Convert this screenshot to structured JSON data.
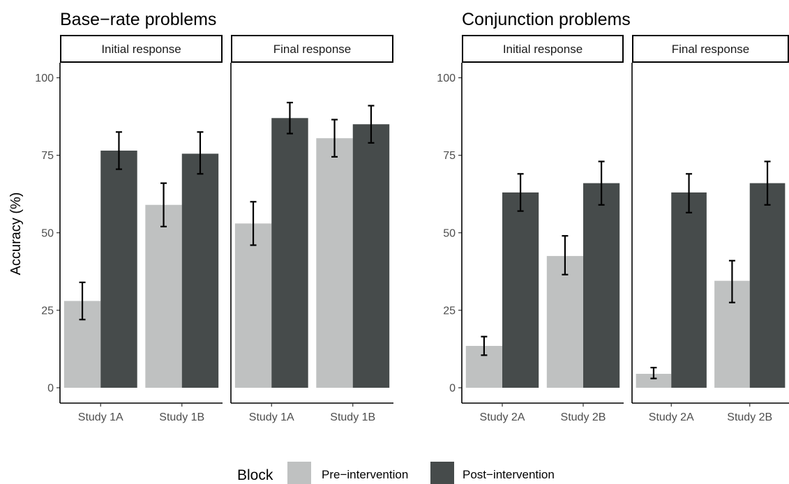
{
  "chart_data": {
    "type": "bar",
    "ylabel": "Accuracy (%)",
    "yticks": [
      0,
      25,
      50,
      75,
      100
    ],
    "ylim": [
      0,
      100
    ],
    "grid": false,
    "legend": {
      "title": "Block",
      "placement": "bottom",
      "entries": [
        {
          "name": "Pre−intervention",
          "color": "#bfc1c1"
        },
        {
          "name": "Post−intervention",
          "color": "#464b4b"
        }
      ]
    },
    "panels": [
      {
        "title": "Base−rate problems",
        "facets": [
          {
            "label": "Initial response",
            "categories": [
              "Study 1A",
              "Study 1B"
            ],
            "series": [
              {
                "name": "Pre−intervention",
                "values": [
                  28,
                  59
                ],
                "err_low": [
                  22,
                  52
                ],
                "err_high": [
                  34,
                  66
                ]
              },
              {
                "name": "Post−intervention",
                "values": [
                  76.5,
                  75.5
                ],
                "err_low": [
                  70.5,
                  69
                ],
                "err_high": [
                  82.5,
                  82.5
                ]
              }
            ]
          },
          {
            "label": "Final response",
            "categories": [
              "Study 1A",
              "Study 1B"
            ],
            "series": [
              {
                "name": "Pre−intervention",
                "values": [
                  53,
                  80.5
                ],
                "err_low": [
                  46,
                  74.5
                ],
                "err_high": [
                  60,
                  86.5
                ]
              },
              {
                "name": "Post−intervention",
                "values": [
                  87,
                  85
                ],
                "err_low": [
                  82,
                  79
                ],
                "err_high": [
                  92,
                  91
                ]
              }
            ]
          }
        ]
      },
      {
        "title": "Conjunction problems",
        "facets": [
          {
            "label": "Initial response",
            "categories": [
              "Study 2A",
              "Study 2B"
            ],
            "series": [
              {
                "name": "Pre−intervention",
                "values": [
                  13.5,
                  42.5
                ],
                "err_low": [
                  10.5,
                  36.5
                ],
                "err_high": [
                  16.5,
                  49
                ]
              },
              {
                "name": "Post−intervention",
                "values": [
                  63,
                  66
                ],
                "err_low": [
                  57,
                  59
                ],
                "err_high": [
                  69,
                  73
                ]
              }
            ]
          },
          {
            "label": "Final response",
            "categories": [
              "Study 2A",
              "Study 2B"
            ],
            "series": [
              {
                "name": "Pre−intervention",
                "values": [
                  4.5,
                  34.5
                ],
                "err_low": [
                  3,
                  27.5
                ],
                "err_high": [
                  6.5,
                  41
                ]
              },
              {
                "name": "Post−intervention",
                "values": [
                  63,
                  66
                ],
                "err_low": [
                  56.5,
                  59
                ],
                "err_high": [
                  69,
                  73
                ]
              }
            ]
          }
        ]
      }
    ]
  }
}
